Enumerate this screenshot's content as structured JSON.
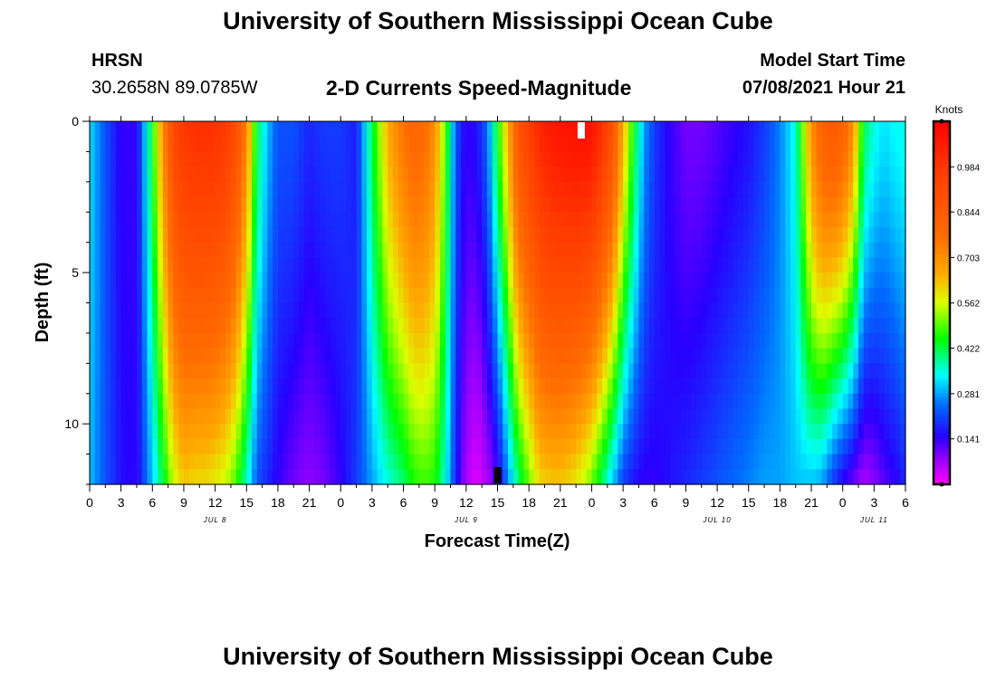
{
  "header": {
    "title": "University of Southern Mississippi Ocean Cube",
    "station": "HRSN",
    "coords": "30.2658N  89.0785W",
    "subtitle": "2-D Currents Speed-Magnitude",
    "model_label": "Model Start Time",
    "model_time": "07/08/2021 Hour 21"
  },
  "footer": {
    "title": "University of Southern Mississippi Ocean Cube"
  },
  "chart_data": {
    "type": "heatmap",
    "title": "2-D Currents Speed-Magnitude",
    "xlabel": "Forecast Time(Z)",
    "ylabel": "Depth (ft)",
    "x_start_hour": 0,
    "x_end_hour": 78,
    "x_tick_labels": [
      "0",
      "3",
      "6",
      "9",
      "12",
      "15",
      "18",
      "21",
      "0",
      "3",
      "6",
      "9",
      "12",
      "15",
      "18",
      "21",
      "0",
      "3",
      "6",
      "9",
      "12",
      "15",
      "18",
      "21",
      "0",
      "3",
      "6"
    ],
    "date_labels": [
      {
        "text": "JUL 8",
        "hour": 12
      },
      {
        "text": "JUL 9",
        "hour": 36
      },
      {
        "text": "JUL 10",
        "hour": 60
      },
      {
        "text": "JUL 11",
        "hour": 75
      }
    ],
    "y_ticks": [
      0,
      5,
      10
    ],
    "ylim": [
      0,
      12
    ],
    "colorbar": {
      "label": "Knots",
      "range": [
        0.0,
        1.125
      ],
      "tick_labels": [
        "0.984",
        "0.844",
        "0.703",
        "0.562",
        "0.422",
        "0.281",
        "0.141"
      ],
      "tick_values": [
        0.984,
        0.844,
        0.703,
        0.562,
        0.422,
        0.281,
        0.141
      ]
    },
    "markers": [
      {
        "name": "surface-marker",
        "hour": 47,
        "depth": 0.3,
        "color": "#ffffff"
      },
      {
        "name": "bottom-marker",
        "hour": 39,
        "depth": 11.7,
        "color": "#000000"
      }
    ],
    "speed_profile_knots": {
      "hours": [
        0,
        1.5,
        3,
        4.5,
        6,
        7,
        8,
        9,
        10,
        11,
        12,
        13,
        14,
        15,
        16,
        17,
        18,
        19.5,
        21,
        22.5,
        24,
        25.5,
        27,
        28.5,
        30,
        31,
        32,
        33,
        34,
        35,
        36,
        37,
        38,
        39,
        40,
        41,
        42,
        43,
        44,
        45,
        46,
        47,
        48,
        49,
        50,
        51,
        52,
        53,
        54,
        55.5,
        57,
        58.5,
        60,
        61.5,
        63,
        64.5,
        66,
        67.5,
        69,
        70,
        71,
        72,
        73,
        74,
        75,
        76,
        77,
        78
      ],
      "surface": [
        0.32,
        0.22,
        0.14,
        0.14,
        0.45,
        0.7,
        0.92,
        0.98,
        1.0,
        1.0,
        1.0,
        0.97,
        0.9,
        0.72,
        0.42,
        0.3,
        0.22,
        0.22,
        0.18,
        0.2,
        0.2,
        0.17,
        0.42,
        0.65,
        0.76,
        0.8,
        0.78,
        0.7,
        0.5,
        0.22,
        0.14,
        0.16,
        0.24,
        0.45,
        0.65,
        0.87,
        0.95,
        1.02,
        1.06,
        1.07,
        1.08,
        1.09,
        1.08,
        1.0,
        0.88,
        0.65,
        0.45,
        0.28,
        0.2,
        0.14,
        0.1,
        0.1,
        0.12,
        0.14,
        0.16,
        0.2,
        0.26,
        0.35,
        0.7,
        0.82,
        0.85,
        0.82,
        0.7,
        0.42,
        0.35,
        0.32,
        0.34,
        0.35
      ],
      "bottom": [
        0.3,
        0.22,
        0.16,
        0.14,
        0.3,
        0.42,
        0.55,
        0.62,
        0.6,
        0.6,
        0.58,
        0.55,
        0.48,
        0.36,
        0.22,
        0.18,
        0.14,
        0.1,
        0.08,
        0.1,
        0.14,
        0.2,
        0.28,
        0.35,
        0.4,
        0.46,
        0.48,
        0.46,
        0.35,
        0.18,
        0.06,
        0.02,
        0.06,
        0.12,
        0.26,
        0.4,
        0.5,
        0.6,
        0.62,
        0.62,
        0.6,
        0.56,
        0.5,
        0.4,
        0.3,
        0.2,
        0.16,
        0.14,
        0.14,
        0.16,
        0.18,
        0.2,
        0.22,
        0.24,
        0.26,
        0.28,
        0.28,
        0.3,
        0.3,
        0.28,
        0.2,
        0.14,
        0.1,
        0.06,
        0.08,
        0.12,
        0.14,
        0.18
      ]
    }
  }
}
